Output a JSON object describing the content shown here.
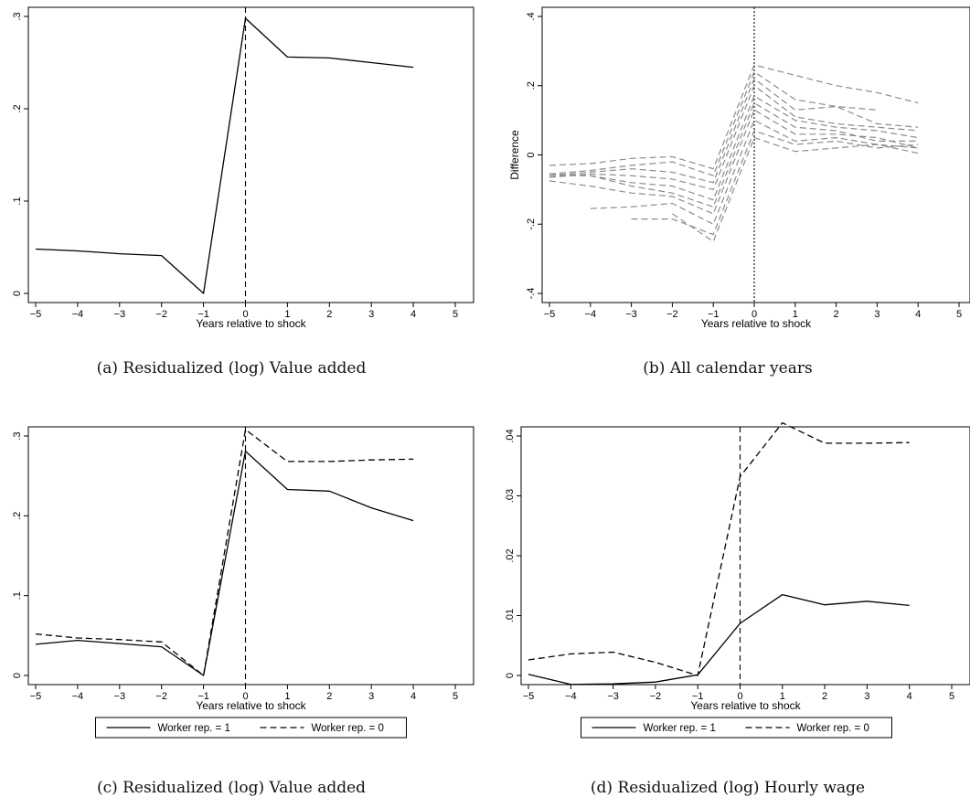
{
  "captions": {
    "a": "(a) Residualized (log) Value added",
    "b": "(b) All calendar years",
    "c": "(c) Residualized (log) Value added",
    "d": "(d) Residualized (log) Hourly wage"
  },
  "chart_data": [
    {
      "id": "a",
      "type": "line",
      "xlabel": "Years relative to shock",
      "ylabel": "",
      "xlim": [
        -5,
        5
      ],
      "ylim": [
        0,
        0.3
      ],
      "xticks": [
        -5,
        -4,
        -3,
        -2,
        -1,
        0,
        1,
        2,
        3,
        4,
        5
      ],
      "yticks": [
        0,
        0.1,
        0.2,
        0.3
      ],
      "ytick_labels": [
        "0",
        ".1",
        ".2",
        ".3"
      ],
      "vline": 0,
      "vline_style": "dashed",
      "series": [
        {
          "style": "solid",
          "color": "#000000",
          "x": [
            -5,
            -4,
            -3,
            -2,
            -1,
            0,
            1,
            2,
            3,
            4
          ],
          "y": [
            0.048,
            0.046,
            0.043,
            0.041,
            0.0,
            0.298,
            0.256,
            0.255,
            0.25,
            0.245
          ]
        }
      ]
    },
    {
      "id": "b",
      "type": "line",
      "xlabel": "Years relative to shock",
      "ylabel": "Difference",
      "xlim": [
        -5,
        5
      ],
      "ylim": [
        -0.4,
        0.4
      ],
      "xticks": [
        -5,
        -4,
        -3,
        -2,
        -1,
        0,
        1,
        2,
        3,
        4,
        5
      ],
      "yticks": [
        -0.4,
        -0.2,
        0,
        0.2,
        0.4
      ],
      "ytick_labels": [
        "-.4",
        "-.2",
        "0",
        ".2",
        ".4"
      ],
      "vline": 0,
      "vline_style": "dotted",
      "series": [
        {
          "style": "dashed",
          "color": "#8c8c8c",
          "x": [
            -5,
            -4,
            -3,
            -2,
            -1,
            0,
            1,
            2,
            3,
            4
          ],
          "y": [
            -0.03,
            -0.025,
            -0.01,
            -0.005,
            -0.04,
            0.26,
            0.23,
            0.2,
            0.18,
            0.15
          ]
        },
        {
          "style": "dashed",
          "color": "#8c8c8c",
          "x": [
            -5,
            -4,
            -3,
            -2,
            -1,
            0,
            1,
            2,
            3
          ],
          "y": [
            -0.055,
            -0.045,
            -0.03,
            -0.02,
            -0.06,
            0.24,
            0.16,
            0.14,
            0.13
          ]
        },
        {
          "style": "dashed",
          "color": "#8c8c8c",
          "x": [
            -5,
            -4,
            -3,
            -2,
            -1,
            0,
            1,
            2,
            3,
            4
          ],
          "y": [
            -0.06,
            -0.05,
            -0.04,
            -0.05,
            -0.08,
            0.22,
            0.13,
            0.14,
            0.09,
            0.08
          ]
        },
        {
          "style": "dashed",
          "color": "#8c8c8c",
          "x": [
            -5,
            -4,
            -3,
            -2,
            -1,
            0,
            1,
            2,
            3,
            4
          ],
          "y": [
            -0.065,
            -0.055,
            -0.06,
            -0.07,
            -0.1,
            0.2,
            0.11,
            0.09,
            0.08,
            0.07
          ]
        },
        {
          "style": "dashed",
          "color": "#8c8c8c",
          "x": [
            -5,
            -4,
            -3,
            -2,
            -1,
            0,
            1,
            2,
            3,
            4
          ],
          "y": [
            -0.06,
            -0.06,
            -0.08,
            -0.09,
            -0.13,
            0.17,
            0.1,
            0.08,
            0.07,
            0.05
          ]
        },
        {
          "style": "dashed",
          "color": "#8c8c8c",
          "x": [
            -5,
            -4,
            -3,
            -2,
            -1,
            0,
            1,
            2,
            3,
            4
          ],
          "y": [
            -0.055,
            -0.06,
            -0.09,
            -0.11,
            -0.15,
            0.15,
            0.08,
            0.07,
            0.04,
            0.04
          ]
        },
        {
          "style": "dashed",
          "color": "#8c8c8c",
          "x": [
            -5,
            -4,
            -3,
            -2,
            -1,
            0,
            1,
            2,
            3,
            4
          ],
          "y": [
            -0.075,
            -0.09,
            -0.11,
            -0.12,
            -0.17,
            0.13,
            0.06,
            0.06,
            0.05,
            0.02
          ]
        },
        {
          "style": "dashed",
          "color": "#8c8c8c",
          "x": [
            -4,
            -3,
            -2,
            -1,
            0,
            1,
            2,
            3,
            4
          ],
          "y": [
            -0.155,
            -0.15,
            -0.14,
            -0.2,
            0.1,
            0.04,
            0.05,
            0.03,
            0.02
          ]
        },
        {
          "style": "dashed",
          "color": "#8c8c8c",
          "x": [
            -3,
            -2,
            -1,
            0,
            1,
            2,
            3,
            4
          ],
          "y": [
            -0.185,
            -0.185,
            -0.23,
            0.07,
            0.03,
            0.04,
            0.02,
            0.03
          ]
        },
        {
          "style": "dashed",
          "color": "#8c8c8c",
          "x": [
            -2,
            -1,
            0,
            1,
            2,
            3,
            4
          ],
          "y": [
            -0.17,
            -0.25,
            0.05,
            0.01,
            0.02,
            0.03,
            0.005
          ]
        }
      ]
    },
    {
      "id": "c",
      "type": "line",
      "xlabel": "Years relative to shock",
      "ylabel": "",
      "xlim": [
        -5,
        5
      ],
      "ylim": [
        0,
        0.3
      ],
      "xticks": [
        -5,
        -4,
        -3,
        -2,
        -1,
        0,
        1,
        2,
        3,
        4,
        5
      ],
      "yticks": [
        0,
        0.1,
        0.2,
        0.3
      ],
      "ytick_labels": [
        "0",
        ".1",
        ".2",
        ".3"
      ],
      "vline": 0,
      "vline_style": "dashed",
      "legend": {
        "position": "bottom",
        "entries": [
          "Worker rep. = 1",
          "Worker rep. = 0"
        ]
      },
      "series": [
        {
          "name": "Worker rep. = 1",
          "style": "solid",
          "color": "#000000",
          "x": [
            -5,
            -4,
            -3,
            -2,
            -1,
            0,
            1,
            2,
            3,
            4
          ],
          "y": [
            0.039,
            0.044,
            0.04,
            0.036,
            0.0,
            0.281,
            0.233,
            0.231,
            0.21,
            0.194
          ]
        },
        {
          "name": "Worker rep. = 0",
          "style": "dashed",
          "color": "#000000",
          "x": [
            -5,
            -4,
            -3,
            -2,
            -1,
            0,
            1,
            2,
            3,
            4
          ],
          "y": [
            0.052,
            0.047,
            0.045,
            0.042,
            0.0,
            0.308,
            0.268,
            0.268,
            0.27,
            0.271
          ]
        }
      ]
    },
    {
      "id": "d",
      "type": "line",
      "xlabel": "Years relative to shock",
      "ylabel": "",
      "xlim": [
        -5,
        5
      ],
      "ylim": [
        0,
        0.04
      ],
      "xticks": [
        -5,
        -4,
        -3,
        -2,
        -1,
        0,
        1,
        2,
        3,
        4,
        5
      ],
      "yticks": [
        0,
        0.01,
        0.02,
        0.03,
        0.04
      ],
      "ytick_labels": [
        "0",
        ".01",
        ".02",
        ".03",
        ".04"
      ],
      "vline": 0,
      "vline_style": "dashed",
      "legend": {
        "position": "bottom",
        "entries": [
          "Worker rep. = 1",
          "Worker rep. = 0"
        ]
      },
      "series": [
        {
          "name": "Worker rep. = 1",
          "style": "solid",
          "color": "#000000",
          "x": [
            -5,
            -4,
            -3,
            -2,
            -1,
            0,
            1,
            2,
            3,
            4
          ],
          "y": [
            0.0002,
            -0.0015,
            -0.0014,
            -0.0011,
            0.0001,
            0.0087,
            0.0135,
            0.0118,
            0.0124,
            0.0117
          ]
        },
        {
          "name": "Worker rep. = 0",
          "style": "dashed",
          "color": "#000000",
          "x": [
            -5,
            -4,
            -3,
            -2,
            -1,
            0,
            1,
            2,
            3,
            4
          ],
          "y": [
            0.0026,
            0.0036,
            0.0039,
            0.0022,
            0.0,
            0.0332,
            0.0422,
            0.0388,
            0.0388,
            0.0389
          ]
        }
      ]
    }
  ]
}
